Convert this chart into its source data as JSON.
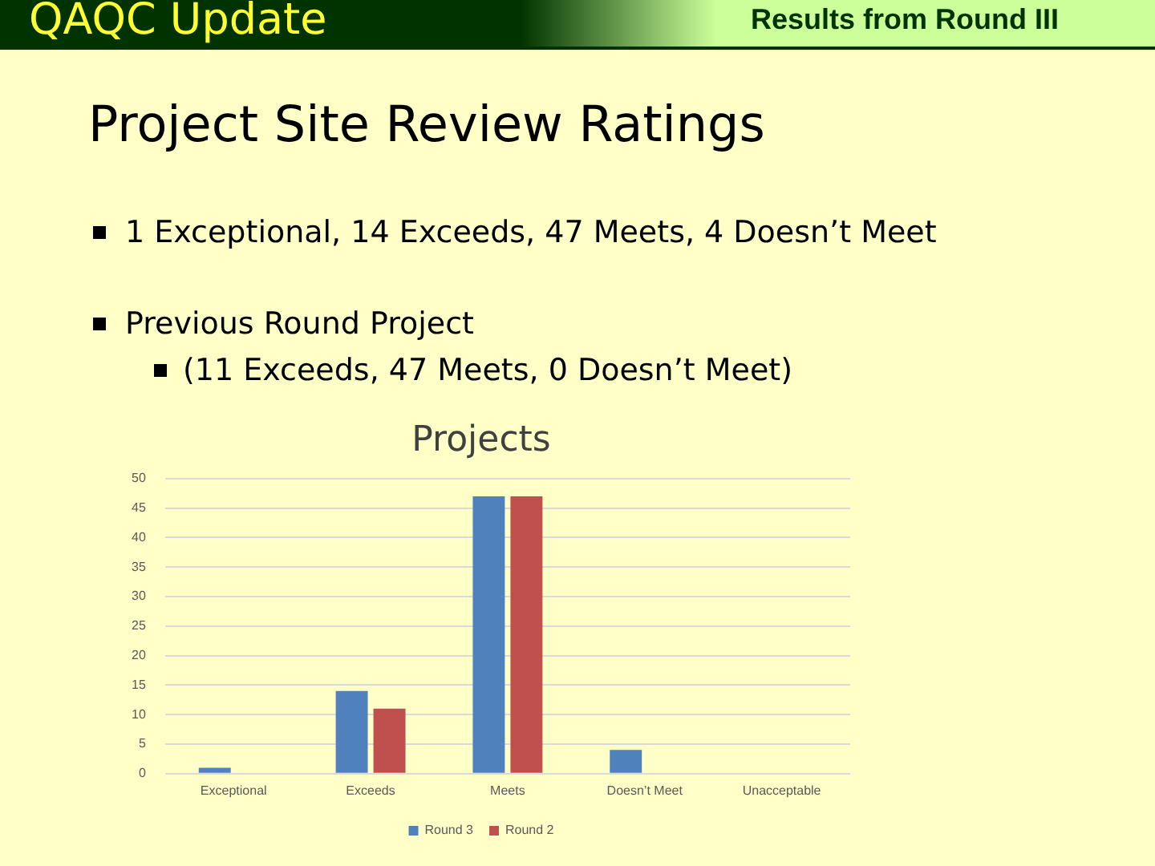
{
  "chart_data": {
    "type": "bar",
    "title": "Projects",
    "annotations": [
      "QAQC Update",
      "Results from Round III",
      "Project Site Review Ratings",
      "1 Exceptional, 14 Exceeds, 47 Meets, 4 Doesn’t Meet",
      "Previous Round Project",
      "(11 Exceeds, 47 Meets, 0 Doesn’t Meet)"
    ],
    "categories": [
      "Exceptional",
      "Exceeds",
      "Meets",
      "Doesn’t Meet",
      "Unacceptable"
    ],
    "series": [
      {
        "name": "Round 3",
        "color": "#4f81bd",
        "values": [
          1,
          14,
          47,
          4,
          0
        ]
      },
      {
        "name": "Round 2",
        "color": "#c0504d",
        "values": [
          0,
          11,
          47,
          0,
          0
        ]
      }
    ],
    "ylim": [
      0,
      50
    ],
    "yticks": [
      0,
      5,
      10,
      15,
      20,
      25,
      30,
      35,
      40,
      45,
      50
    ],
    "grid": "y",
    "legend": "bottom"
  }
}
